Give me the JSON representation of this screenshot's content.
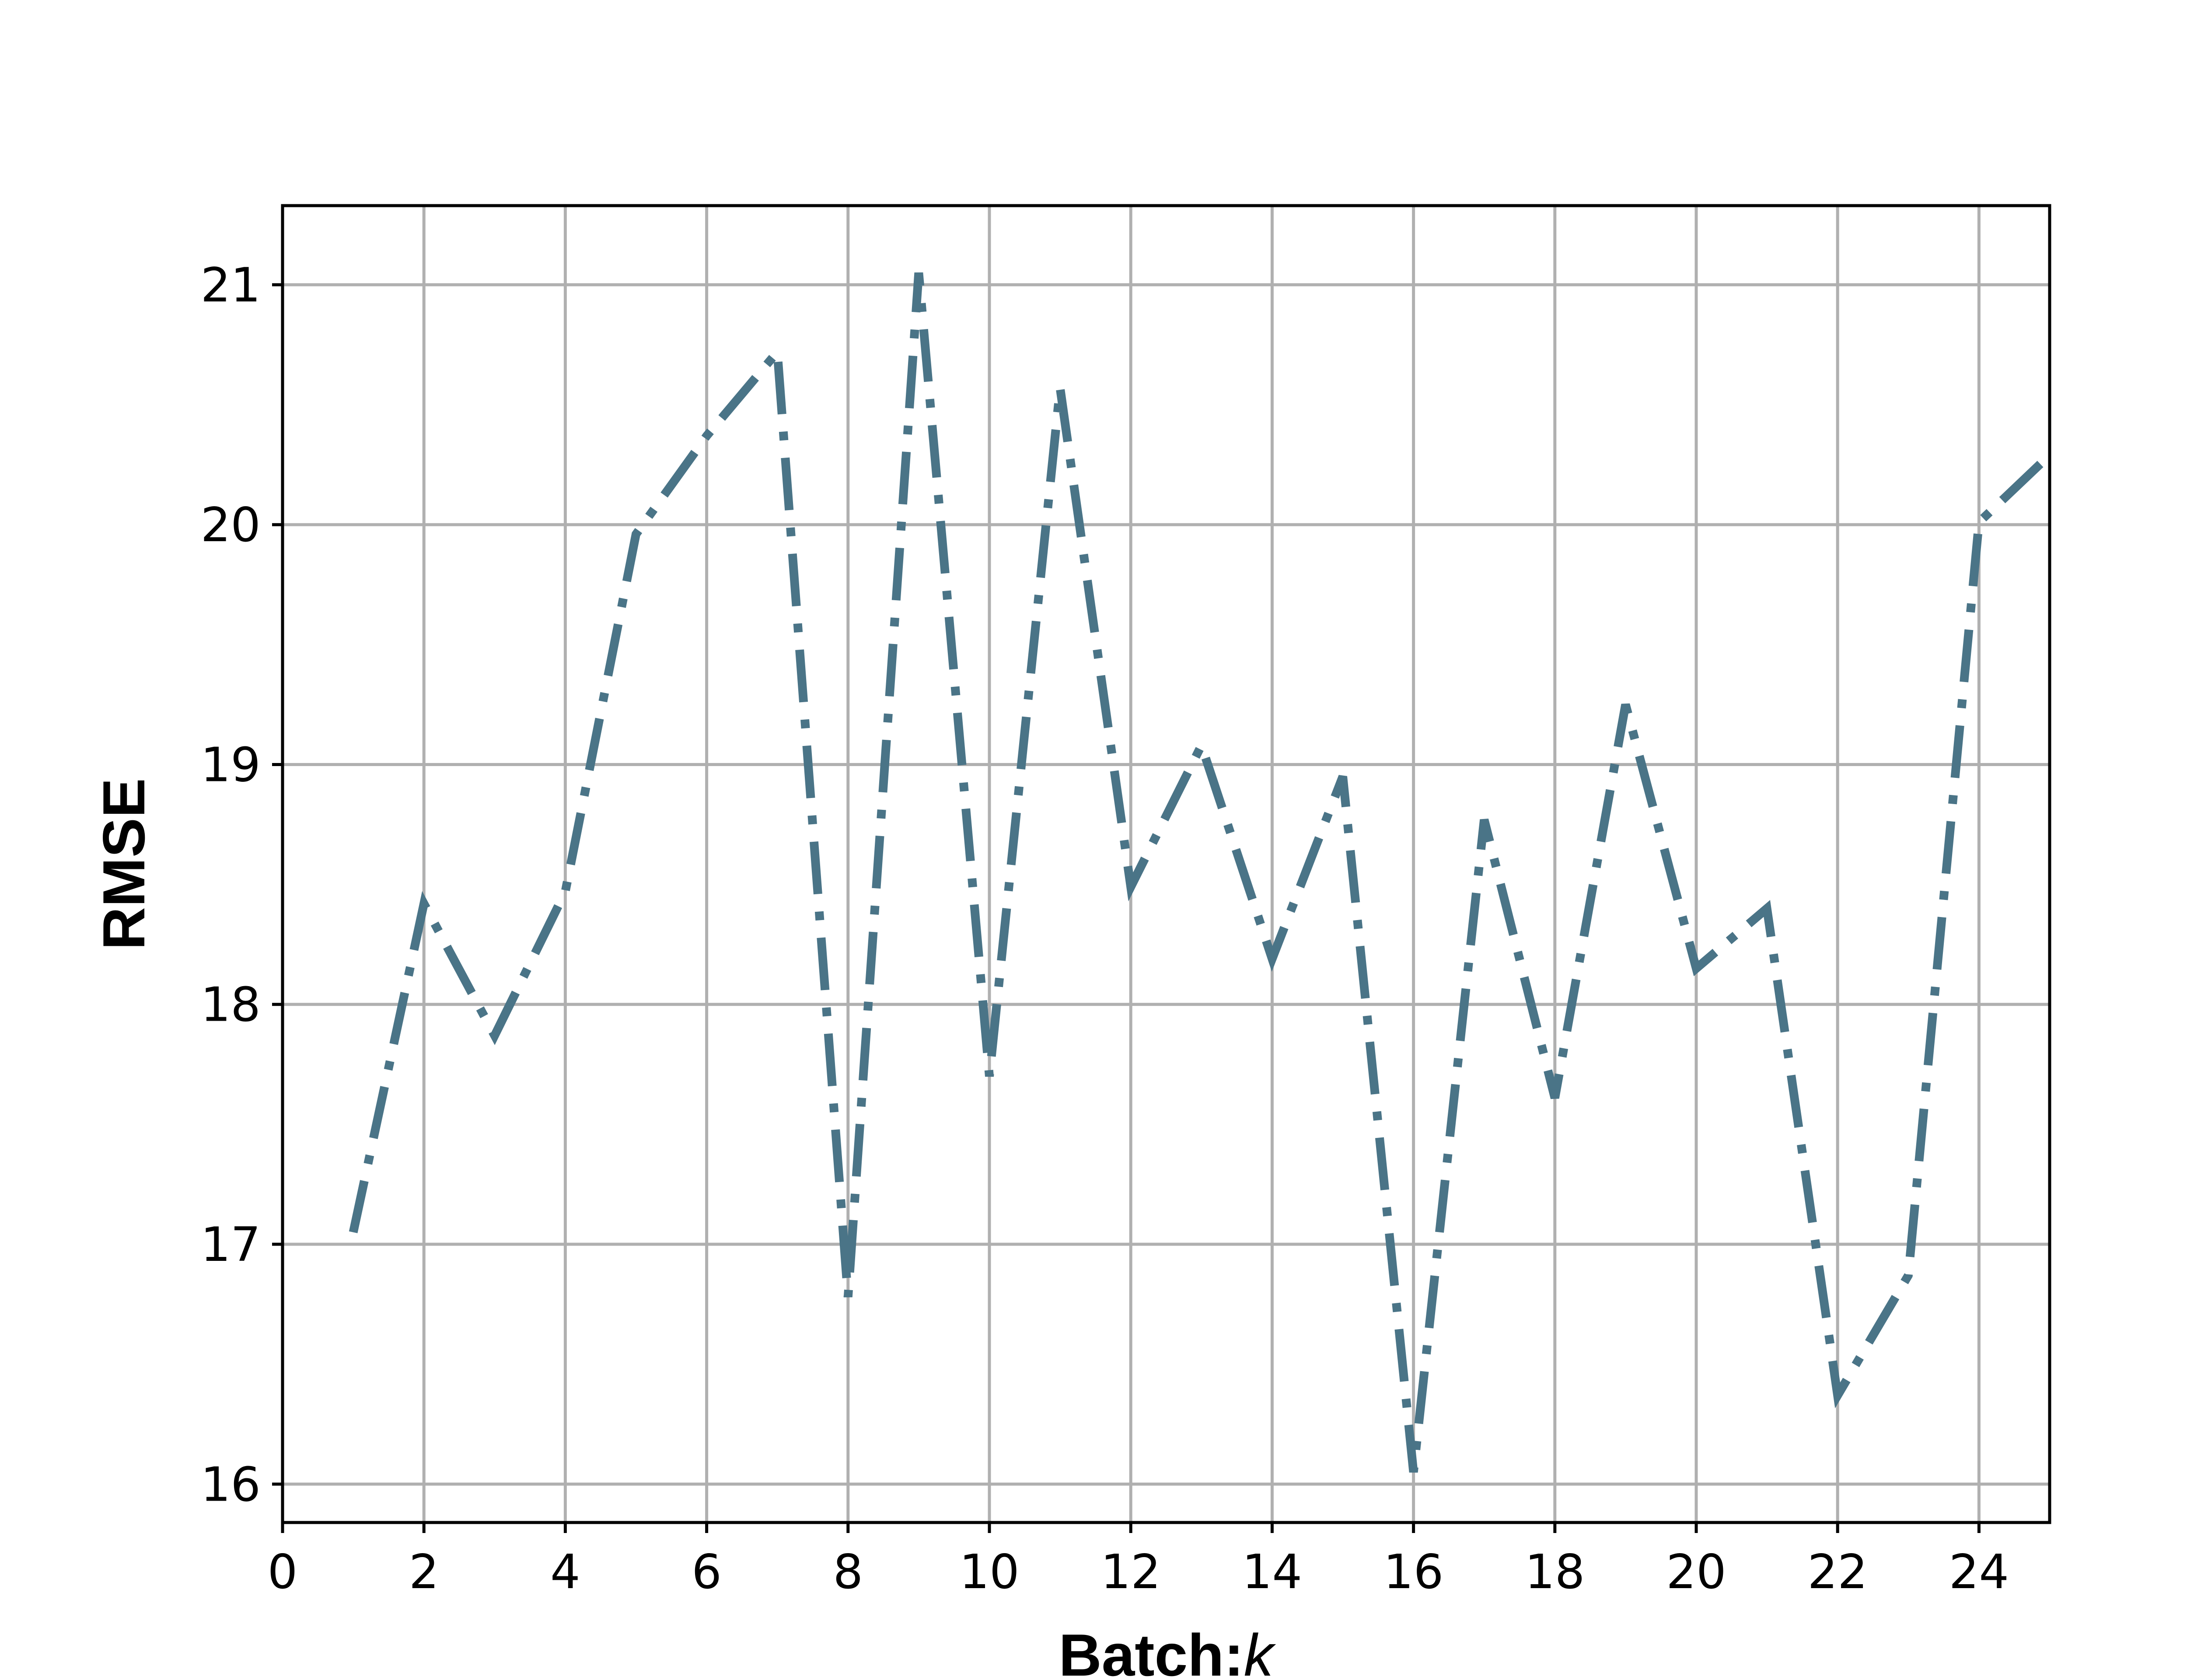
{
  "chart_data": {
    "type": "line",
    "title": "",
    "xlabel_bold": "Batch:",
    "xlabel_italic": "k",
    "ylabel": "RMSE",
    "xlim": [
      0,
      25
    ],
    "ylim": [
      15.84,
      21.33
    ],
    "xticks": [
      0,
      2,
      4,
      6,
      8,
      10,
      12,
      14,
      16,
      18,
      20,
      22,
      24
    ],
    "yticks": [
      16,
      17,
      18,
      19,
      20,
      21
    ],
    "grid": true,
    "line_style": "dash-dot",
    "series": [
      {
        "color": "#4a7487",
        "x": [
          1,
          2,
          3,
          4,
          5,
          6,
          7,
          8,
          9,
          10,
          11,
          12,
          13,
          14,
          15,
          16,
          17,
          18,
          19,
          20,
          21,
          22,
          23,
          24,
          25
        ],
        "y": [
          17.05,
          18.42,
          17.87,
          18.47,
          19.96,
          20.37,
          20.72,
          16.78,
          21.05,
          17.7,
          20.57,
          18.49,
          19.08,
          18.19,
          18.95,
          16.05,
          18.77,
          17.61,
          19.25,
          18.15,
          18.4,
          16.37,
          16.87,
          20.01,
          20.29
        ]
      }
    ]
  }
}
